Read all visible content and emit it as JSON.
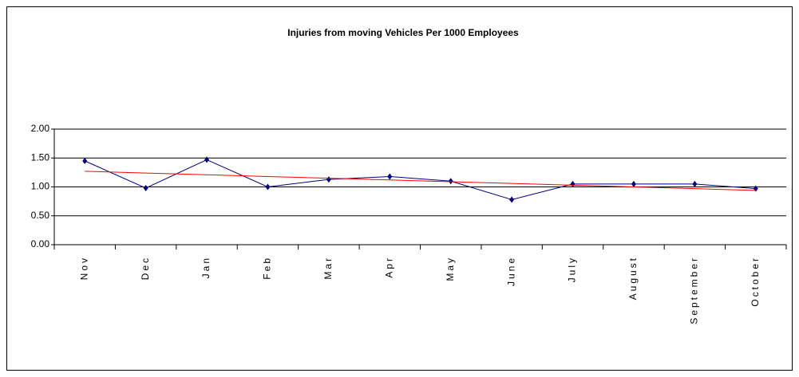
{
  "chart_data": {
    "type": "line",
    "title": "Injuries from moving Vehicles Per 1000 Employees",
    "categories": [
      "Nov",
      "Dec",
      "Jan",
      "Feb",
      "Mar",
      "Apr",
      "May",
      "June",
      "July",
      "August",
      "September",
      "October"
    ],
    "series": [
      {
        "color": "#000080",
        "markers": true,
        "values": [
          1.45,
          0.98,
          1.47,
          1.0,
          1.13,
          1.18,
          1.1,
          0.78,
          1.05,
          1.05,
          1.05,
          0.97
        ]
      },
      {
        "color": "#ff0000",
        "markers": false,
        "values": [
          1.27,
          1.24,
          1.21,
          1.18,
          1.15,
          1.12,
          1.09,
          1.06,
          1.03,
          1.0,
          0.97,
          0.94
        ]
      }
    ],
    "ylim": [
      0,
      2
    ],
    "yticks": [
      {
        "value": 0,
        "label": "0.00"
      },
      {
        "value": 0.5,
        "label": "0.50"
      },
      {
        "value": 1,
        "label": "1.00"
      },
      {
        "value": 1.5,
        "label": "1.50"
      },
      {
        "value": 2,
        "label": "2.00"
      }
    ],
    "grid": true
  }
}
